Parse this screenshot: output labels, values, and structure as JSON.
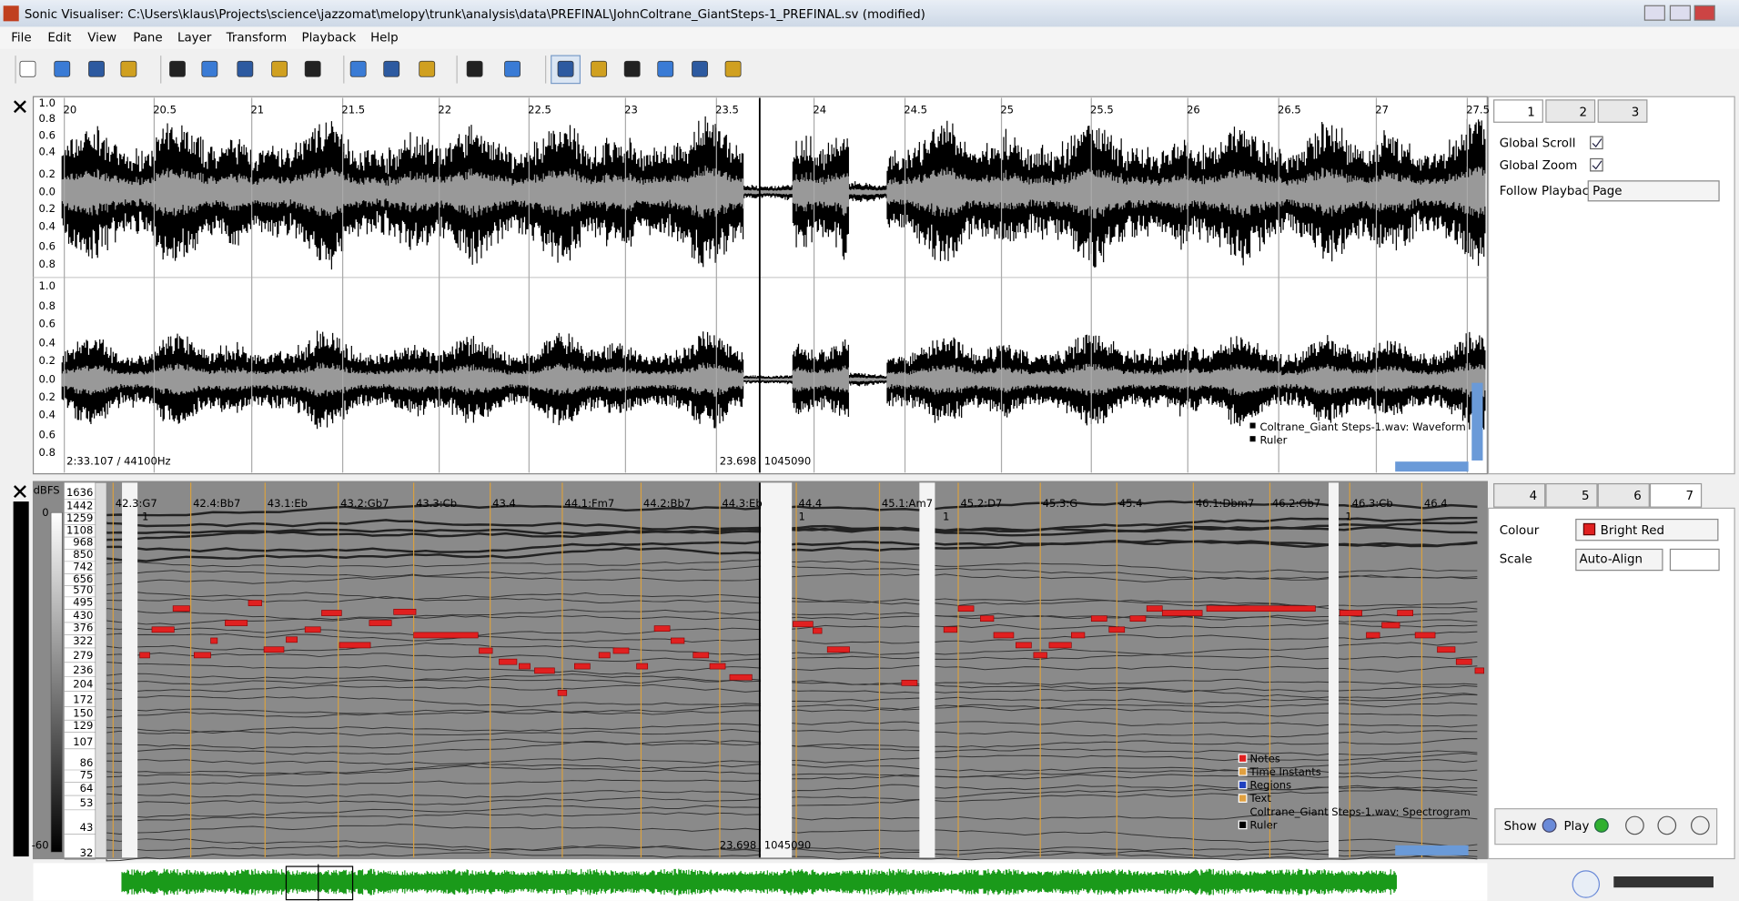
{
  "window": {
    "title": "Sonic Visualiser: C:\\Users\\klaus\\Projects\\science\\jazzomat\\melopy\\trunk\\analysis\\data\\PREFINAL\\JohnColtrane_GiantSteps-1_PREFINAL.sv (modified)"
  },
  "menu": [
    "File",
    "Edit",
    "View",
    "Pane",
    "Layer",
    "Transform",
    "Playback",
    "Help"
  ],
  "pane1": {
    "ruler": [
      "20",
      "20.5",
      "21",
      "21.5",
      "22",
      "22.5",
      "23",
      "23.5",
      "24",
      "24.5",
      "25",
      "25.5",
      "26",
      "26.5",
      "27",
      "27.5"
    ],
    "scale_top": [
      "1.0",
      "0.8",
      "0.6",
      "0.4",
      "0.2",
      "0.0",
      "0.2",
      "0.4",
      "0.6",
      "0.8"
    ],
    "scale_bottom": [
      "1.0",
      "0.8",
      "0.6",
      "0.4",
      "0.2",
      "0.0",
      "0.2",
      "0.4",
      "0.6",
      "0.8"
    ],
    "info": "2:33.107 / 44100Hz",
    "time": "23.698",
    "frame": "1045090",
    "legend": [
      "Coltrane_Giant Steps-1.wav: Waveform",
      "Ruler"
    ]
  },
  "pane2": {
    "unit": "dBFS",
    "db": [
      "0",
      "-60"
    ],
    "freqs": [
      "1636",
      "1442",
      "1259",
      "1108",
      "968",
      "850",
      "742",
      "656",
      "570",
      "495",
      "430",
      "376",
      "322",
      "279",
      "236",
      "204",
      "172",
      "150",
      "129",
      "107",
      "86",
      "75",
      "64",
      "53",
      "43",
      "32"
    ],
    "chords": [
      "42.3:G7",
      "42.4:Bb7",
      "43.1:Eb",
      "43.2:Gb7",
      "43.3:Cb",
      "43.4",
      "44.1:Fm7",
      "44.2:Bb7",
      "44.3:Eb",
      "44.4",
      "45.1:Am7",
      "45.2:D7",
      "45.3:G",
      "45.4",
      "46.1:Dbm7",
      "46.2:Gb7",
      "46.3:Cb",
      "46.4"
    ],
    "bars": [
      "1",
      "1",
      "1",
      "1"
    ],
    "time": "23.698",
    "frame": "1045090",
    "legend": [
      "Notes",
      "Time Instants",
      "Regions",
      "Text",
      "Coltrane_Giant Steps-1.wav: Spectrogram",
      "Ruler"
    ]
  },
  "panel": {
    "tabs_top": [
      "1",
      "2",
      "3"
    ],
    "global_scroll": "Global Scroll",
    "global_zoom": "Global Zoom",
    "follow_playback": "Follow Playback",
    "follow_value": "Page",
    "tabs_bottom": [
      "4",
      "5",
      "6",
      "7"
    ],
    "colour": "Colour",
    "colour_value": "Bright Red",
    "scale": "Scale",
    "scale_value": "Auto-Align",
    "show": "Show",
    "play": "Play"
  }
}
